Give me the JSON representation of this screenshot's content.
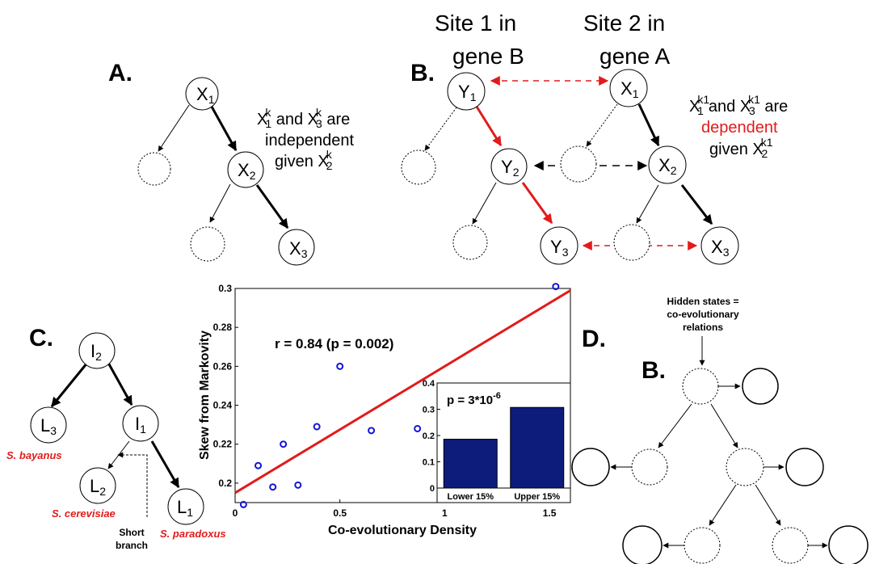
{
  "colors": {
    "red": "#e21b1b",
    "blue": "#1414d6",
    "bar": "#0d1b7a",
    "black": "#000000"
  },
  "panel_a": {
    "letter": "A.",
    "nodes": [
      {
        "base": "X",
        "sub": "1"
      },
      {
        "base": "X",
        "sub": "2"
      },
      {
        "base": "X",
        "sub": "3"
      }
    ],
    "text": {
      "l1_x1": "X",
      "l1_x1_sup": "k",
      "l1_x1_sub": "1",
      "l1_and": " and ",
      "l1_x3": "X",
      "l1_x3_sup": "k",
      "l1_x3_sub": "3",
      "l1_are": " are",
      "l2": "independent",
      "l3_given": "given ",
      "l3_x2": "X",
      "l3_x2_sup": "k",
      "l3_x2_sub": "2"
    }
  },
  "panel_b": {
    "letter": "B.",
    "site1_line1": "Site 1 in",
    "site1_line2": "gene B",
    "site2_line1": "Site 2 in",
    "site2_line2": "gene A",
    "y_nodes": [
      {
        "base": "Y",
        "sub": "1"
      },
      {
        "base": "Y",
        "sub": "2"
      },
      {
        "base": "Y",
        "sub": "3"
      }
    ],
    "x_nodes": [
      {
        "base": "X",
        "sub": "1"
      },
      {
        "base": "X",
        "sub": "2"
      },
      {
        "base": "X",
        "sub": "3"
      }
    ],
    "text": {
      "l1_x1": "X",
      "l1_x1_sup": "k1",
      "l1_x1_sub": "1",
      "l1_and": "and ",
      "l1_x3": "X",
      "l1_x3_sup": "k1",
      "l1_x3_sub": "3",
      "l1_are": " are",
      "l2": "dependent",
      "l3_given": "given ",
      "l3_x2": "X",
      "l3_x2_sup": "k1",
      "l3_x2_sub": "2"
    }
  },
  "panel_c": {
    "letter": "C.",
    "nodes": {
      "i2": {
        "base": "I",
        "sub": "2"
      },
      "i1": {
        "base": "I",
        "sub": "1"
      },
      "l3": {
        "base": "L",
        "sub": "3"
      },
      "l2": {
        "base": "L",
        "sub": "2"
      },
      "l1": {
        "base": "L",
        "sub": "1"
      }
    },
    "species": {
      "bayanus": "S. bayanus",
      "cerevisiae": "S. cerevisiae",
      "paradoxus": "S. paradoxus"
    },
    "short_branch_line1": "Short",
    "short_branch_line2": "branch"
  },
  "panel_d": {
    "letter": "D.",
    "hidden_line1": "Hidden states =",
    "hidden_line2": "co-evolutionary",
    "hidden_line3": "relations",
    "b_label": "B."
  },
  "chart_data": [
    {
      "type": "scatter",
      "title": "",
      "annotation": "r = 0.84 (p = 0.002)",
      "xlabel": "Co-evolutionary Density",
      "ylabel": "Skew from Markovity",
      "xlim": [
        0,
        1.6
      ],
      "ylim": [
        0.19,
        0.3
      ],
      "x_ticks": [
        0,
        0.5,
        1,
        1.5
      ],
      "x_tick_labels": [
        "0",
        "0.5",
        "1",
        "1.5"
      ],
      "y_ticks": [
        0.2,
        0.22,
        0.24,
        0.26,
        0.28,
        0.3
      ],
      "y_tick_labels": [
        "0.2",
        "0.22",
        "0.24",
        "0.26",
        "0.28",
        "0.3"
      ],
      "points": [
        {
          "x": 0.04,
          "y": 0.189
        },
        {
          "x": 0.11,
          "y": 0.209
        },
        {
          "x": 0.18,
          "y": 0.198
        },
        {
          "x": 0.23,
          "y": 0.22
        },
        {
          "x": 0.3,
          "y": 0.199
        },
        {
          "x": 0.39,
          "y": 0.229
        },
        {
          "x": 0.5,
          "y": 0.26
        },
        {
          "x": 0.65,
          "y": 0.227
        },
        {
          "x": 0.87,
          "y": 0.228
        },
        {
          "x": 1.53,
          "y": 0.301
        }
      ],
      "fit_line": {
        "x": [
          0,
          1.6
        ],
        "y": [
          0.195,
          0.299
        ]
      }
    },
    {
      "type": "bar",
      "annotation_base": "p = 3*10",
      "annotation_exp": "-6",
      "categories": [
        "Lower 15%",
        "Upper 15%"
      ],
      "values": [
        0.186,
        0.307
      ],
      "ylim": [
        0,
        0.4
      ],
      "y_ticks": [
        0,
        0.1,
        0.2,
        0.3,
        0.4
      ],
      "y_tick_labels": [
        "0",
        "0.1",
        "0.2",
        "0.3",
        "0.4"
      ]
    }
  ]
}
